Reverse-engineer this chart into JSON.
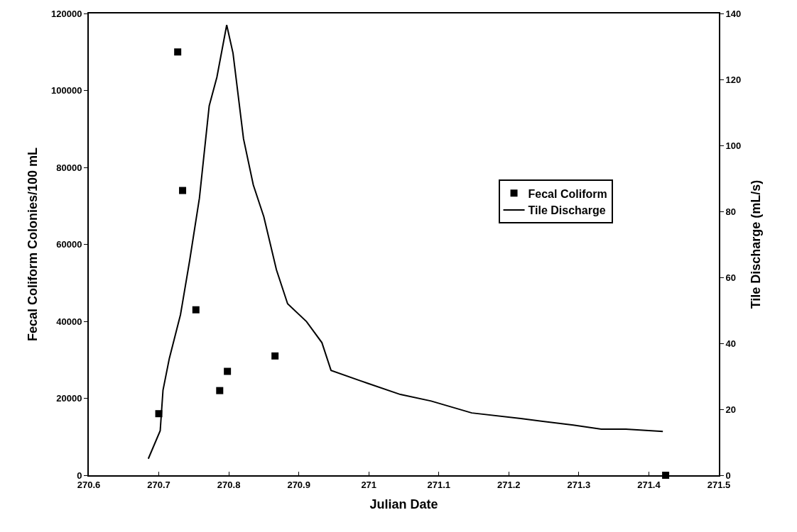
{
  "chart_data": {
    "type": "scatter",
    "xlabel": "Julian Date",
    "ylabel": "Fecal Coliform Colonies/100 mL",
    "y2label": "Tile Discharge (mL/s)",
    "xlim": [
      270.6,
      271.5
    ],
    "xticks": [
      270.6,
      270.7,
      270.8,
      270.9,
      271,
      271.1,
      271.2,
      271.3,
      271.4,
      271.5
    ],
    "ylim": [
      0,
      120000
    ],
    "yticks": [
      0,
      20000,
      40000,
      60000,
      80000,
      100000,
      120000
    ],
    "y2lim": [
      0,
      140
    ],
    "y2ticks": [
      0,
      20,
      40,
      60,
      80,
      100,
      120,
      140
    ],
    "legend": "right",
    "series": [
      {
        "name": "Fecal Coliform",
        "marker": "square",
        "color": "#000000",
        "x": [
          270.7,
          270.727,
          270.734,
          270.753,
          270.787,
          270.798,
          270.866,
          271.424
        ],
        "values": [
          16000,
          110000,
          74000,
          43000,
          22000,
          27000,
          31000,
          0
        ]
      },
      {
        "name": "Tile Discharge",
        "type": "line",
        "axis": "y2",
        "line_style": "solid",
        "color": "#000000",
        "x": [
          270.685,
          270.702,
          270.706,
          270.715,
          270.731,
          270.744,
          270.758,
          270.772,
          270.783,
          270.797,
          270.806,
          270.821,
          270.835,
          270.85,
          270.868,
          270.884,
          270.911,
          270.933,
          270.946,
          270.998,
          271.045,
          271.089,
          271.147,
          271.217,
          271.292,
          271.332,
          271.367,
          271.42
        ],
        "values": [
          5,
          13.5,
          25.8,
          35.4,
          48.7,
          65,
          84,
          112,
          120.7,
          136.5,
          128,
          102,
          88,
          78.4,
          62.3,
          52,
          46.6,
          40.2,
          31.8,
          27.9,
          24.5,
          22.5,
          18.9,
          17.2,
          15.2,
          14,
          14,
          13.3
        ]
      }
    ]
  }
}
